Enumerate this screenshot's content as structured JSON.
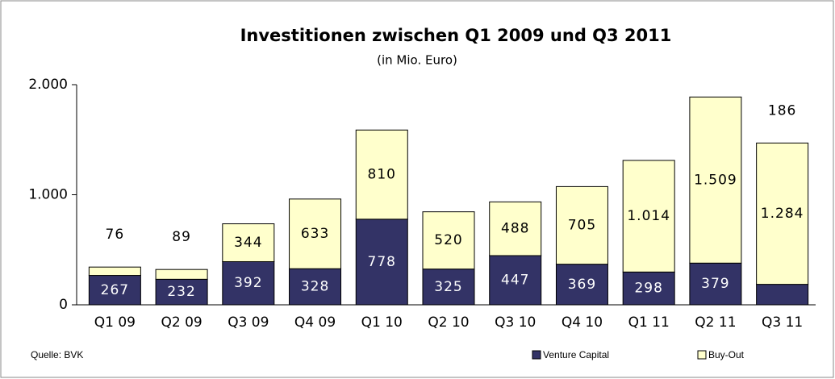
{
  "chart_data": {
    "type": "stacked_bar",
    "title": "Investitionen zwischen Q1 2009 und Q3 2011",
    "subtitle": "(in Mio. Euro)",
    "source": "Quelle: BVK",
    "categories": [
      "Q1 09",
      "Q2 09",
      "Q3 09",
      "Q4 09",
      "Q1 10",
      "Q2 10",
      "Q3 10",
      "Q4 10",
      "Q1 11",
      "Q2 11",
      "Q3 11"
    ],
    "series": [
      {
        "name": "Venture Capital",
        "color": "#333366",
        "values": [
          267,
          232,
          392,
          328,
          778,
          325,
          447,
          369,
          298,
          379,
          186
        ]
      },
      {
        "name": "Buy-Out",
        "color": "#ffffcc",
        "values": [
          76,
          89,
          344,
          633,
          810,
          520,
          488,
          705,
          1014,
          1509,
          1284
        ],
        "value_labels": [
          "76",
          "89",
          "344",
          "633",
          "810",
          "520",
          "488",
          "705",
          "1.014",
          "1.509",
          "1.284"
        ]
      }
    ],
    "ylim": [
      0,
      2000
    ],
    "yticks": [
      0,
      {
        "value": 1000,
        "label": "1.000"
      },
      {
        "value": 2000,
        "label": "2.000"
      }
    ],
    "legend": "bottom"
  }
}
